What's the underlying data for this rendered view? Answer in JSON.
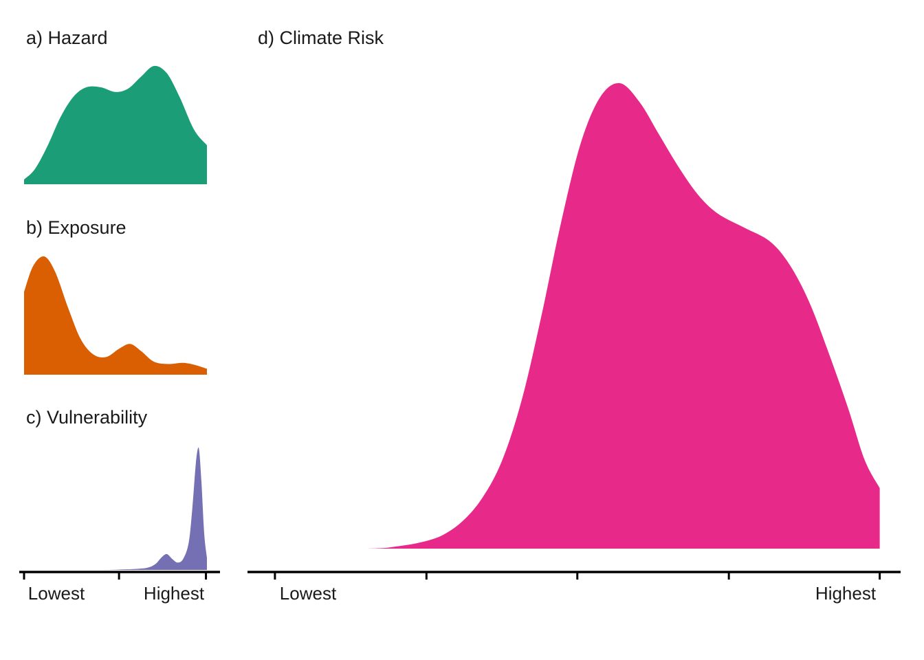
{
  "figure": {
    "background": "#ffffff",
    "description": "Four density (area) plots: hazard, exposure and vulnerability distributions combine into climate risk"
  },
  "chart_data": {
    "type": "area",
    "panels": [
      {
        "id": "hazard",
        "label": "a) Hazard",
        "color": "#1B9E77",
        "x_domain": [
          "Lowest",
          "Highest"
        ],
        "x": [
          0.0,
          0.06,
          0.13,
          0.2,
          0.27,
          0.34,
          0.42,
          0.5,
          0.57,
          0.64,
          0.71,
          0.78,
          0.85,
          0.93,
          1.0
        ],
        "y": [
          0.04,
          0.13,
          0.33,
          0.57,
          0.74,
          0.82,
          0.82,
          0.78,
          0.81,
          0.91,
          1.0,
          0.94,
          0.74,
          0.46,
          0.33
        ]
      },
      {
        "id": "exposure",
        "label": "b) Exposure",
        "color": "#D95F02",
        "x_domain": [
          "Lowest",
          "Highest"
        ],
        "x": [
          0.0,
          0.05,
          0.11,
          0.17,
          0.24,
          0.31,
          0.38,
          0.45,
          0.52,
          0.58,
          0.64,
          0.71,
          0.79,
          0.87,
          0.94,
          1.0
        ],
        "y": [
          0.7,
          0.92,
          1.0,
          0.87,
          0.57,
          0.3,
          0.17,
          0.15,
          0.22,
          0.26,
          0.2,
          0.11,
          0.09,
          0.1,
          0.08,
          0.05
        ]
      },
      {
        "id": "vulnerability",
        "label": "c) Vulnerability",
        "color": "#7570B3",
        "x_domain": [
          "Lowest",
          "Highest"
        ],
        "x": [
          0.0,
          0.4,
          0.55,
          0.63,
          0.68,
          0.72,
          0.75,
          0.78,
          0.81,
          0.84,
          0.87,
          0.9,
          0.92,
          0.94,
          0.955,
          0.97,
          0.985,
          1.0
        ],
        "y": [
          0.0,
          0.0,
          0.005,
          0.01,
          0.02,
          0.05,
          0.1,
          0.13,
          0.09,
          0.06,
          0.09,
          0.22,
          0.5,
          0.88,
          1.0,
          0.72,
          0.3,
          0.1
        ]
      },
      {
        "id": "climate-risk",
        "label": "d) Climate Risk",
        "color": "#E7298A",
        "x_domain": [
          "Lowest",
          "Highest"
        ],
        "x": [
          0.0,
          0.18,
          0.23,
          0.27,
          0.3,
          0.33,
          0.36,
          0.39,
          0.42,
          0.45,
          0.48,
          0.51,
          0.54,
          0.57,
          0.6,
          0.63,
          0.66,
          0.69,
          0.72,
          0.76,
          0.8,
          0.83,
          0.86,
          0.89,
          0.92,
          0.945,
          0.968
        ],
        "y": [
          0.0,
          0.0,
          0.005,
          0.015,
          0.03,
          0.06,
          0.11,
          0.19,
          0.32,
          0.5,
          0.7,
          0.87,
          0.97,
          1.0,
          0.96,
          0.89,
          0.82,
          0.76,
          0.72,
          0.69,
          0.66,
          0.61,
          0.53,
          0.42,
          0.3,
          0.19,
          0.13
        ]
      }
    ],
    "axes": {
      "small": {
        "labels": [
          "Lowest",
          "Highest"
        ],
        "ticks": [
          0.024,
          0.497,
          0.93
        ]
      },
      "large": {
        "labels": [
          "Lowest",
          "Highest"
        ],
        "ticks": [
          0.042,
          0.274,
          0.505,
          0.737,
          0.968
        ]
      }
    },
    "axis_color": "#000000",
    "grid": false,
    "legend": "none"
  }
}
